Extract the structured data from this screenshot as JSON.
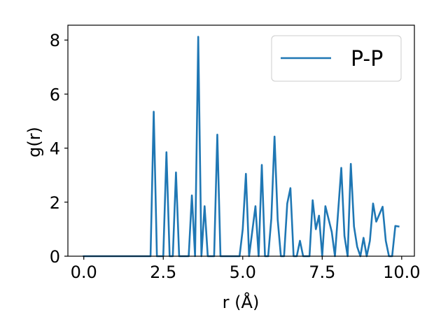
{
  "chart_data": {
    "type": "line",
    "title": "",
    "xlabel": "r (Å)",
    "ylabel": "g(r)",
    "xlim": [
      -0.5,
      10.4
    ],
    "ylim": [
      0,
      8.55
    ],
    "x_ticks": [
      0.0,
      2.5,
      5.0,
      7.5,
      10.0
    ],
    "x_tick_labels": [
      "0.0",
      "2.5",
      "5.0",
      "7.5",
      "10.0"
    ],
    "y_ticks": [
      0,
      2,
      4,
      6,
      8
    ],
    "y_tick_labels": [
      "0",
      "2",
      "4",
      "6",
      "8"
    ],
    "grid": false,
    "legend_position": "top-right",
    "series": [
      {
        "name": "P-P",
        "color": "#1f77b4",
        "x": [
          0.0,
          2.1,
          2.2,
          2.3,
          2.5,
          2.6,
          2.7,
          2.8,
          2.9,
          3.0,
          3.3,
          3.4,
          3.5,
          3.6,
          3.7,
          3.8,
          3.9,
          4.1,
          4.2,
          4.3,
          4.9,
          5.0,
          5.1,
          5.2,
          5.4,
          5.5,
          5.6,
          5.7,
          5.8,
          5.9,
          6.0,
          6.1,
          6.2,
          6.3,
          6.4,
          6.5,
          6.6,
          6.7,
          6.8,
          6.9,
          7.1,
          7.2,
          7.3,
          7.4,
          7.5,
          7.6,
          7.8,
          7.9,
          8.1,
          8.2,
          8.3,
          8.4,
          8.5,
          8.6,
          8.7,
          8.8,
          8.9,
          9.0,
          9.1,
          9.2,
          9.4,
          9.5,
          9.6,
          9.7,
          9.8,
          9.9
        ],
        "y": [
          0.0,
          0.0,
          5.35,
          0.0,
          0.0,
          3.85,
          0.0,
          0.0,
          3.1,
          0.0,
          0.0,
          2.25,
          0.0,
          8.12,
          0.0,
          1.85,
          0.0,
          0.0,
          4.5,
          0.0,
          0.0,
          1.0,
          3.05,
          0.0,
          1.85,
          0.0,
          3.38,
          0.0,
          0.0,
          1.4,
          4.43,
          1.35,
          0.0,
          0.0,
          1.95,
          2.52,
          0.0,
          0.0,
          0.57,
          0.0,
          0.0,
          2.07,
          1.0,
          1.5,
          0.0,
          1.85,
          0.9,
          0.0,
          3.27,
          0.75,
          0.0,
          3.42,
          1.1,
          0.35,
          0.0,
          0.68,
          0.0,
          0.57,
          1.95,
          1.28,
          1.83,
          0.57,
          0.0,
          0.0,
          1.12,
          1.1
        ]
      }
    ]
  }
}
